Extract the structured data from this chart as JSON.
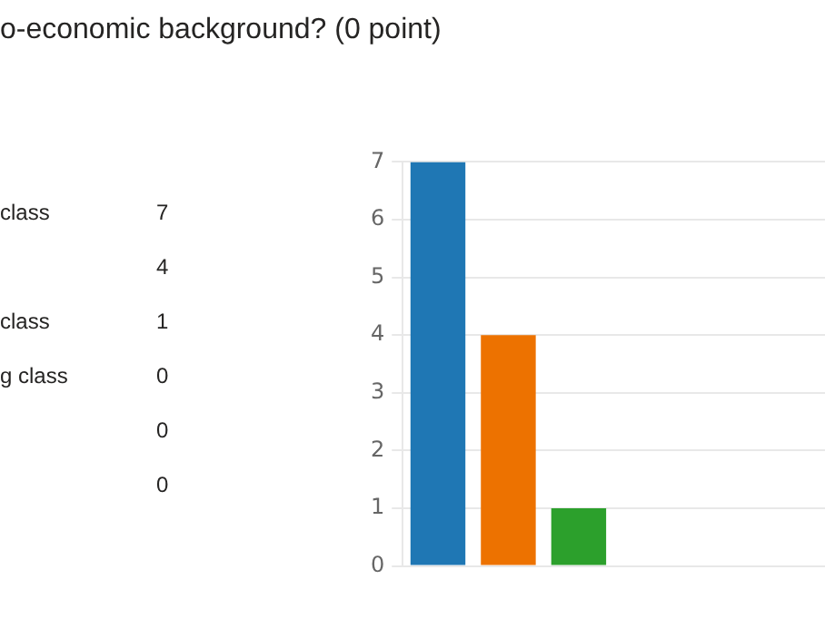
{
  "chart_data": [
    {
      "type": "other",
      "title": "o-economic background? (0 point)",
      "categories": [
        "class",
        null,
        "class",
        "g class",
        null,
        null
      ],
      "value_labels": [
        "7",
        "4",
        "1",
        "0",
        "0",
        "0"
      ]
    },
    {
      "type": "bar",
      "categories": [
        null,
        null,
        null,
        null,
        null,
        null
      ],
      "values": [
        7,
        4,
        1,
        0,
        0,
        0
      ],
      "colors": [
        "#1f77b4",
        "#ed7200",
        "#2ca02c",
        "#d62728",
        "#9467bd",
        "#8c564b"
      ],
      "ylim": [
        0,
        7
      ],
      "yticks": [
        0,
        1,
        2,
        3,
        4,
        5,
        6,
        7
      ],
      "grid": "y",
      "legend": false,
      "tick_labels": "y"
    }
  ]
}
